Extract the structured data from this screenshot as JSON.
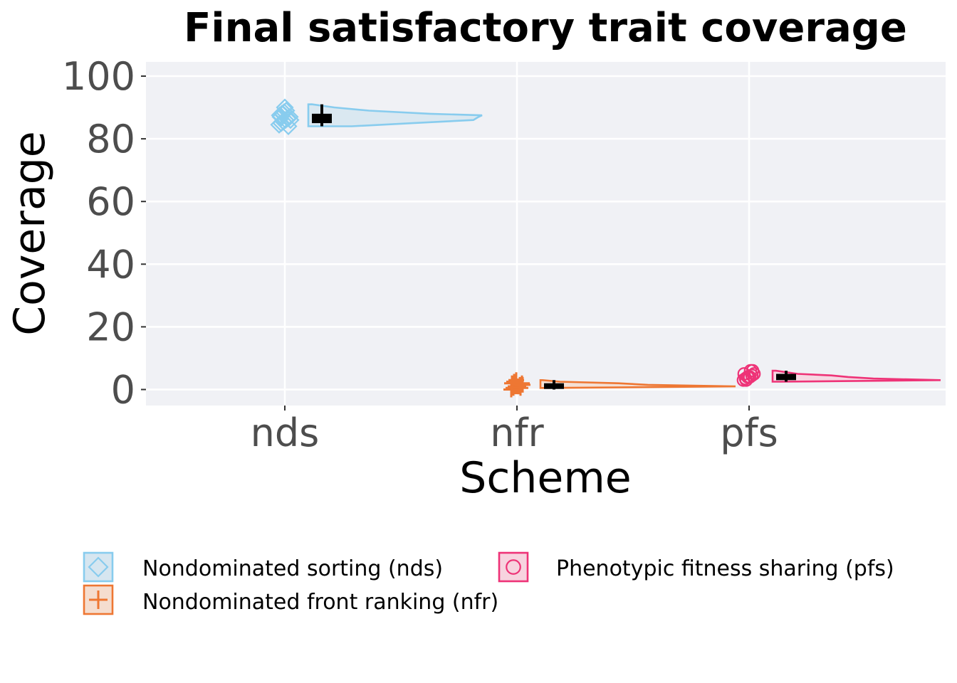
{
  "chart_data": {
    "type": "raincloud",
    "title": "Final satisfactory trait coverage",
    "xlabel": "Scheme",
    "ylabel": "Coverage",
    "categories": [
      "nds",
      "nfr",
      "pfs"
    ],
    "ylim": [
      -5,
      105
    ],
    "yticks": [
      0,
      20,
      40,
      60,
      80,
      100
    ],
    "grid": true,
    "legend_position": "bottom",
    "series": [
      {
        "key": "nds",
        "name": "Nondominated sorting (nds)",
        "color": "#88CCEE",
        "fill": "#d6e6f0",
        "marker": "diamond",
        "points": [
          84.5,
          85,
          85.5,
          86,
          86.5,
          87,
          87.5,
          88,
          88.5,
          89,
          84,
          86,
          87,
          88,
          90
        ],
        "box": {
          "q1": 85,
          "median": 87,
          "q3": 88,
          "min": 84,
          "max": 91
        },
        "density": [
          [
            84,
            0.25
          ],
          [
            85,
            0.6
          ],
          [
            86,
            0.95
          ],
          [
            87,
            0.98
          ],
          [
            87.5,
            1.0
          ],
          [
            88,
            0.7
          ],
          [
            89,
            0.35
          ],
          [
            90,
            0.15
          ],
          [
            91,
            0.02
          ]
        ]
      },
      {
        "key": "nfr",
        "name": "Nondominated front ranking (nfr)",
        "color": "#EE7733",
        "fill": "#f5ddcf",
        "marker": "plus",
        "points": [
          0,
          0.5,
          1,
          1,
          1.5,
          2,
          2,
          2.5,
          3,
          1,
          0.5,
          1.5
        ],
        "box": {
          "q1": 1,
          "median": 1.5,
          "q3": 2,
          "min": 0,
          "max": 3
        },
        "density": [
          [
            0.5,
            0.02
          ],
          [
            1,
            1.0
          ],
          [
            1.5,
            0.55
          ],
          [
            2,
            0.4
          ],
          [
            2.5,
            0.1
          ],
          [
            3,
            0.01
          ]
        ]
      },
      {
        "key": "pfs",
        "name": "Phenotypic fitness sharing (pfs)",
        "color": "#EE3377",
        "fill": "#f7d3df",
        "marker": "circle-o",
        "points": [
          3,
          3.5,
          4,
          4,
          4.5,
          5,
          5,
          3,
          4,
          6,
          6
        ],
        "box": {
          "q1": 3,
          "median": 3.8,
          "q3": 5,
          "min": 2.5,
          "max": 6
        },
        "density": [
          [
            2.5,
            0.05
          ],
          [
            3,
            1.0
          ],
          [
            3.5,
            0.6
          ],
          [
            4,
            0.45
          ],
          [
            4.5,
            0.35
          ],
          [
            5,
            0.15
          ],
          [
            6,
            0.02
          ]
        ]
      }
    ]
  }
}
